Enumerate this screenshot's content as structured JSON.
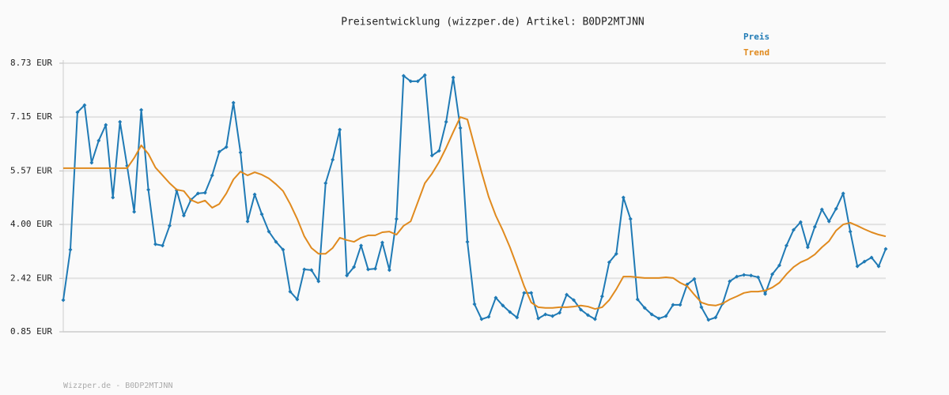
{
  "chart_data": {
    "type": "line",
    "title": "Preisentwicklung (wizzper.de) Artikel: B0DP2MTJNN",
    "footer": "Wizzper.de - B0DP2MTJNN",
    "ylim": [
      0.85,
      8.73
    ],
    "yticks": [
      {
        "value": 8.73,
        "label": "8.73 EUR"
      },
      {
        "value": 7.15,
        "label": "7.15 EUR"
      },
      {
        "value": 5.57,
        "label": "5.57 EUR"
      },
      {
        "value": 4.0,
        "label": "4.00 EUR"
      },
      {
        "value": 2.42,
        "label": "2.42 EUR"
      },
      {
        "value": 0.85,
        "label": "0.85 EUR"
      }
    ],
    "grid": true,
    "legend": "top-right",
    "series": [
      {
        "name": "Preis",
        "color": "#1f7ab5",
        "markers": true,
        "values": [
          1.78,
          3.26,
          7.29,
          7.5,
          5.81,
          6.46,
          6.92,
          4.79,
          7.01,
          5.72,
          4.37,
          7.36,
          5.02,
          3.42,
          3.38,
          3.96,
          5.0,
          4.26,
          4.72,
          4.91,
          4.93,
          5.44,
          6.13,
          6.27,
          7.57,
          6.11,
          4.09,
          4.88,
          4.3,
          3.79,
          3.49,
          3.26,
          2.03,
          1.8,
          2.68,
          2.66,
          2.33,
          5.21,
          5.9,
          6.78,
          2.5,
          2.75,
          3.38,
          2.68,
          2.7,
          3.47,
          2.66,
          4.16,
          8.36,
          8.2,
          8.2,
          8.38,
          6.02,
          6.16,
          7.01,
          8.31,
          6.83,
          3.49,
          1.66,
          1.22,
          1.29,
          1.85,
          1.62,
          1.43,
          1.27,
          1.99,
          1.99,
          1.24,
          1.36,
          1.31,
          1.41,
          1.94,
          1.78,
          1.5,
          1.34,
          1.22,
          1.89,
          2.89,
          3.14,
          4.79,
          4.16,
          1.8,
          1.55,
          1.36,
          1.24,
          1.31,
          1.64,
          1.64,
          2.24,
          2.4,
          1.57,
          1.2,
          1.27,
          1.68,
          2.33,
          2.47,
          2.52,
          2.5,
          2.45,
          1.96,
          2.54,
          2.8,
          3.38,
          3.84,
          4.07,
          3.33,
          3.93,
          4.44,
          4.09,
          4.46,
          4.91,
          3.79,
          2.77,
          2.91,
          3.03,
          2.77,
          3.28
        ]
      },
      {
        "name": "Trend",
        "color": "#e08a1e",
        "markers": false,
        "values": [
          5.65,
          5.65,
          5.65,
          5.65,
          5.65,
          5.65,
          5.65,
          5.65,
          5.65,
          5.65,
          5.95,
          6.32,
          6.07,
          5.67,
          5.44,
          5.21,
          5.02,
          4.98,
          4.72,
          4.63,
          4.7,
          4.49,
          4.6,
          4.91,
          5.32,
          5.55,
          5.44,
          5.53,
          5.46,
          5.35,
          5.18,
          4.98,
          4.6,
          4.16,
          3.65,
          3.31,
          3.14,
          3.14,
          3.31,
          3.61,
          3.54,
          3.49,
          3.61,
          3.68,
          3.68,
          3.77,
          3.79,
          3.7,
          3.96,
          4.09,
          4.65,
          5.21,
          5.49,
          5.83,
          6.25,
          6.71,
          7.15,
          7.08,
          6.3,
          5.53,
          4.81,
          4.26,
          3.82,
          3.33,
          2.77,
          2.19,
          1.71,
          1.57,
          1.55,
          1.55,
          1.57,
          1.57,
          1.59,
          1.62,
          1.59,
          1.52,
          1.57,
          1.78,
          2.1,
          2.47,
          2.47,
          2.45,
          2.43,
          2.43,
          2.43,
          2.45,
          2.43,
          2.29,
          2.19,
          1.94,
          1.71,
          1.64,
          1.62,
          1.68,
          1.8,
          1.89,
          1.99,
          2.03,
          2.03,
          2.06,
          2.15,
          2.29,
          2.54,
          2.75,
          2.89,
          2.98,
          3.12,
          3.33,
          3.51,
          3.82,
          4.0,
          4.05,
          3.96,
          3.86,
          3.77,
          3.7,
          3.65
        ]
      }
    ]
  }
}
